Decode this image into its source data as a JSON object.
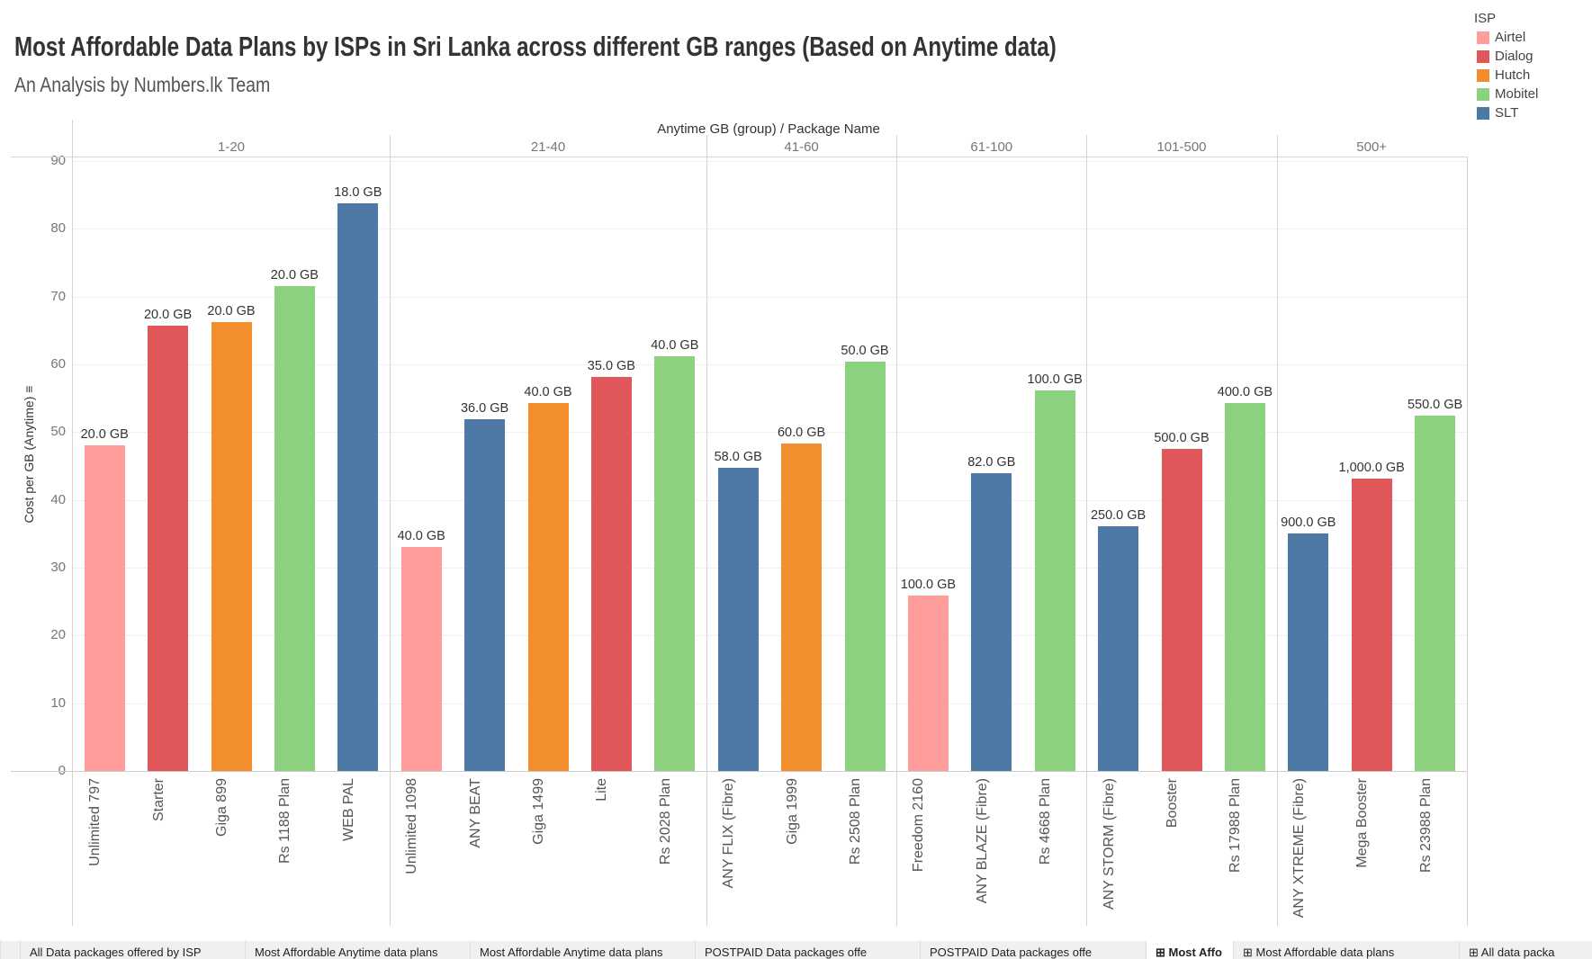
{
  "header": {
    "title": "Most Affordable Data Plans by ISPs in Sri Lanka across different GB ranges (Based on Anytime data)",
    "subtitle": "An Analysis by Numbers.lk Team"
  },
  "legend": {
    "title": "ISP",
    "items": [
      {
        "label": "Airtel",
        "color": "#ff9d9a"
      },
      {
        "label": "Dialog",
        "color": "#e15759"
      },
      {
        "label": "Hutch",
        "color": "#f28e2b"
      },
      {
        "label": "Mobitel",
        "color": "#8cd17d"
      },
      {
        "label": "SLT",
        "color": "#4e79a7"
      }
    ]
  },
  "tabs": [
    {
      "label": "All Data packages offered by ISP",
      "active": false
    },
    {
      "label": "Most Affordable Anytime data plans",
      "active": false
    },
    {
      "label": "Most Affordable Anytime data plans",
      "active": false
    },
    {
      "label": "POSTPAID Data packages offe",
      "active": false
    },
    {
      "label": "POSTPAID Data packages offe",
      "active": false
    },
    {
      "label": "Most Affo",
      "active": true
    },
    {
      "label": "Most Affordable data plans",
      "active": false
    },
    {
      "label": "All data packa",
      "active": false
    }
  ],
  "chart_data": {
    "type": "bar",
    "title": "Most Affordable Data Plans by ISPs in Sri Lanka across different GB ranges (Based on Anytime data)",
    "subtitle": "An Analysis by Numbers.lk Team",
    "column_header": "Anytime GB (group)  /  Package Name",
    "ylabel": "Cost per GB (Anytime)",
    "ylim": [
      0,
      90
    ],
    "yticks": [
      0,
      10,
      20,
      30,
      40,
      50,
      60,
      70,
      80,
      90
    ],
    "grid": true,
    "legend_position": "top-right",
    "groups": [
      {
        "label": "1-20",
        "bars": [
          {
            "package": "Unlimited 797",
            "isp": "Airtel",
            "value": 48.0,
            "data_label": "20.0 GB"
          },
          {
            "package": "Starter",
            "isp": "Dialog",
            "value": 65.7,
            "data_label": "20.0 GB"
          },
          {
            "package": "Giga 899",
            "isp": "Hutch",
            "value": 66.3,
            "data_label": "20.0 GB"
          },
          {
            "package": "Rs 1188 Plan",
            "isp": "Mobitel",
            "value": 71.5,
            "data_label": "20.0 GB"
          },
          {
            "package": "WEB PAL",
            "isp": "SLT",
            "value": 83.7,
            "data_label": "18.0 GB"
          }
        ]
      },
      {
        "label": "21-40",
        "bars": [
          {
            "package": "Unlimited 1098",
            "isp": "Airtel",
            "value": 33.1,
            "data_label": "40.0 GB"
          },
          {
            "package": "ANY BEAT",
            "isp": "SLT",
            "value": 51.9,
            "data_label": "36.0 GB"
          },
          {
            "package": "Giga 1499",
            "isp": "Hutch",
            "value": 54.3,
            "data_label": "40.0 GB"
          },
          {
            "package": "Lite",
            "isp": "Dialog",
            "value": 58.2,
            "data_label": "35.0 GB"
          },
          {
            "package": "Rs 2028 Plan",
            "isp": "Mobitel",
            "value": 61.2,
            "data_label": "40.0 GB"
          }
        ]
      },
      {
        "label": "41-60",
        "bars": [
          {
            "package": "ANY FLIX (Fibre)",
            "isp": "SLT",
            "value": 44.7,
            "data_label": "58.0 GB"
          },
          {
            "package": "Giga 1999",
            "isp": "Hutch",
            "value": 48.3,
            "data_label": "60.0 GB"
          },
          {
            "package": "Rs 2508 Plan",
            "isp": "Mobitel",
            "value": 60.4,
            "data_label": "50.0 GB"
          }
        ]
      },
      {
        "label": "61-100",
        "bars": [
          {
            "package": "Freedom 2160",
            "isp": "Airtel",
            "value": 25.9,
            "data_label": "100.0 GB"
          },
          {
            "package": "ANY BLAZE (Fibre)",
            "isp": "SLT",
            "value": 43.9,
            "data_label": "82.0 GB"
          },
          {
            "package": "Rs 4668 Plan",
            "isp": "Mobitel",
            "value": 56.2,
            "data_label": "100.0 GB"
          }
        ]
      },
      {
        "label": "101-500",
        "bars": [
          {
            "package": "ANY STORM (Fibre)",
            "isp": "SLT",
            "value": 36.1,
            "data_label": "250.0 GB"
          },
          {
            "package": "Booster",
            "isp": "Dialog",
            "value": 47.5,
            "data_label": "500.0 GB"
          },
          {
            "package": "Rs 17988 Plan",
            "isp": "Mobitel",
            "value": 54.3,
            "data_label": "400.0 GB"
          }
        ]
      },
      {
        "label": "500+",
        "bars": [
          {
            "package": "ANY XTREME (Fibre)",
            "isp": "SLT",
            "value": 35.1,
            "data_label": "900.0 GB"
          },
          {
            "package": "Mega Booster",
            "isp": "Dialog",
            "value": 43.2,
            "data_label": "1,000.0 GB"
          },
          {
            "package": "Rs 23988 Plan",
            "isp": "Mobitel",
            "value": 52.5,
            "data_label": "550.0 GB"
          }
        ]
      }
    ]
  }
}
